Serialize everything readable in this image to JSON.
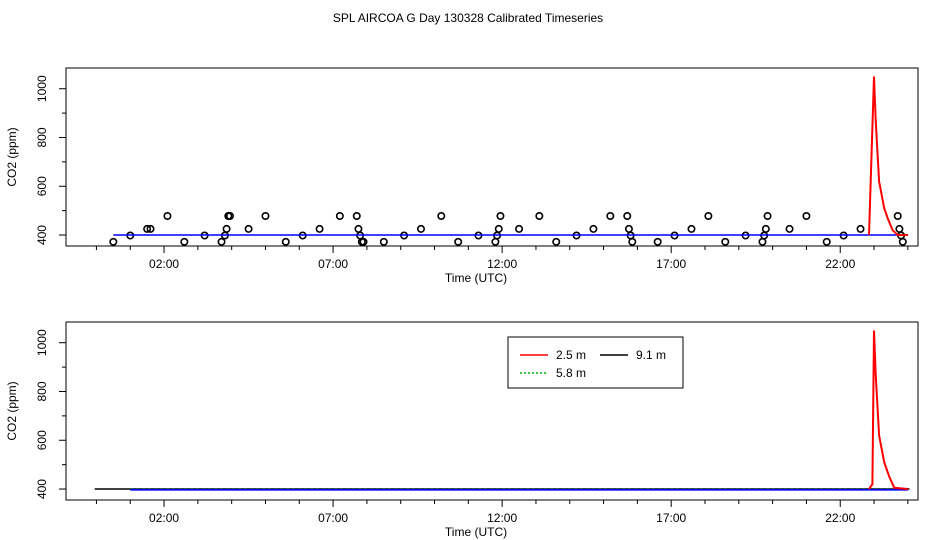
{
  "title": "SPL AIRCOA G  Day 130328  Calibrated Timeseries",
  "colors": {
    "red": "#ff0000",
    "green": "#00b000",
    "blue": "#0000ff",
    "black": "#000000"
  },
  "chart_data": [
    {
      "type": "scatter",
      "title": "",
      "xlabel": "Time (UTC)",
      "ylabel": "CO2 (ppm)",
      "x_ticks": [
        "02:00",
        "07:00",
        "12:00",
        "17:00",
        "22:00"
      ],
      "x_tick_hours": [
        2,
        7,
        12,
        17,
        22
      ],
      "y_ticks": [
        400,
        600,
        800,
        1000
      ],
      "xlim_hours": [
        -0.9,
        24.3
      ],
      "ylim": [
        355,
        1085
      ],
      "grid": false,
      "series": [
        {
          "kind": "points",
          "color": "black",
          "x_hours": [
            0.5,
            1.0,
            1.5,
            1.6,
            2.1,
            2.6,
            3.2,
            3.7,
            3.8,
            3.85,
            3.9,
            3.95,
            4.5,
            5.0,
            5.6,
            6.1,
            6.6,
            7.2,
            7.7,
            7.75,
            7.8,
            7.85,
            7.9,
            8.5,
            9.1,
            9.6,
            10.2,
            10.7,
            11.3,
            11.8,
            11.85,
            11.9,
            11.95,
            12.5,
            13.1,
            13.6,
            14.2,
            14.7,
            15.2,
            15.7,
            15.75,
            15.8,
            15.85,
            16.6,
            17.1,
            17.6,
            18.1,
            18.6,
            19.2,
            19.7,
            19.75,
            19.8,
            19.85,
            20.5,
            21.0,
            21.6,
            22.1,
            22.6,
            23.7,
            23.75,
            23.8,
            23.85
          ],
          "y": [
            372,
            398,
            425,
            425,
            478,
            372,
            398,
            372,
            398,
            425,
            478,
            478,
            425,
            478,
            372,
            398,
            425,
            478,
            478,
            425,
            398,
            372,
            372,
            372,
            398,
            425,
            478,
            372,
            398,
            372,
            398,
            425,
            478,
            425,
            478,
            372,
            398,
            425,
            478,
            478,
            425,
            398,
            372,
            372,
            398,
            425,
            478,
            372,
            398,
            372,
            398,
            425,
            478,
            425,
            478,
            372,
            398,
            425,
            478,
            425,
            398,
            372
          ]
        },
        {
          "kind": "line",
          "color": "blue",
          "x_hours": [
            0.5,
            24.0
          ],
          "y": [
            400,
            400
          ]
        },
        {
          "kind": "line",
          "color": "red",
          "x_hours": [
            22.85,
            23.0,
            23.05,
            23.15,
            23.3,
            23.4,
            23.55,
            23.7,
            24.0
          ],
          "y": [
            400,
            1050,
            870,
            620,
            510,
            470,
            420,
            400,
            400
          ]
        }
      ]
    },
    {
      "type": "line",
      "title": "",
      "xlabel": "Time (UTC)",
      "ylabel": "CO2 (ppm)",
      "x_ticks": [
        "02:00",
        "07:00",
        "12:00",
        "17:00",
        "22:00"
      ],
      "x_tick_hours": [
        2,
        7,
        12,
        17,
        22
      ],
      "y_ticks": [
        400,
        600,
        800,
        1000
      ],
      "xlim_hours": [
        -0.9,
        24.3
      ],
      "ylim": [
        355,
        1085
      ],
      "grid": false,
      "legend": {
        "placement": "top-center",
        "entries": [
          {
            "name": "2.5 m",
            "color": "red",
            "dashed": false
          },
          {
            "name": "9.1 m",
            "color": "black",
            "dashed": false
          },
          {
            "name": "5.8 m",
            "color": "green",
            "dashed": true
          }
        ]
      },
      "series": [
        {
          "name": "9.1 m",
          "color": "black",
          "x_hours": [
            -0.05,
            24.05
          ],
          "y": [
            400,
            400
          ]
        },
        {
          "name": "5.8 m",
          "color": "green",
          "dashed": true,
          "x_hours": [
            1.0,
            24.0
          ],
          "y": [
            398,
            398
          ]
        },
        {
          "name": "blue",
          "color": "blue",
          "x_hours": [
            1.0,
            24.0
          ],
          "y": [
            397,
            397
          ]
        },
        {
          "name": "2.5 m",
          "color": "red",
          "x_hours": [
            22.85,
            22.95,
            23.0,
            23.05,
            23.15,
            23.3,
            23.45,
            23.6,
            24.0
          ],
          "y": [
            400,
            420,
            1050,
            870,
            620,
            510,
            450,
            405,
            400
          ]
        }
      ]
    }
  ]
}
